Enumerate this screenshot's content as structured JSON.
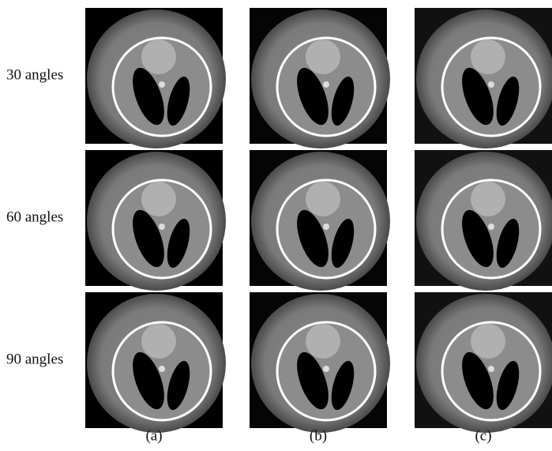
{
  "rows": [
    "30 angles",
    "60 angles",
    "90 angles"
  ],
  "columns": [
    "(a)",
    "(b)",
    "(c)"
  ]
}
